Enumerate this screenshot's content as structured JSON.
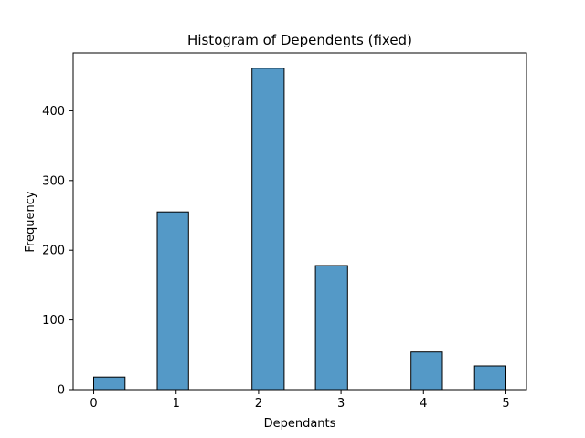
{
  "chart_data": {
    "type": "bar",
    "title": "Histogram of Dependents (fixed)",
    "xlabel": "Dependants",
    "ylabel": "Frequency",
    "bins": [
      {
        "x_start": 0.0,
        "x_end": 0.38,
        "value": 18
      },
      {
        "x_start": 0.77,
        "x_end": 1.15,
        "value": 255
      },
      {
        "x_start": 1.92,
        "x_end": 2.31,
        "value": 461
      },
      {
        "x_start": 2.69,
        "x_end": 3.08,
        "value": 178
      },
      {
        "x_start": 3.85,
        "x_end": 4.23,
        "value": 54
      },
      {
        "x_start": 4.62,
        "x_end": 5.0,
        "value": 34
      }
    ],
    "xlim": [
      -0.25,
      5.25
    ],
    "ylim": [
      0,
      483
    ],
    "x_ticks": [
      "0",
      "1",
      "2",
      "3",
      "4",
      "5"
    ],
    "x_tick_values": [
      0,
      1,
      2,
      3,
      4,
      5
    ],
    "y_ticks": [
      "0",
      "100",
      "200",
      "300",
      "400"
    ],
    "y_tick_values": [
      0,
      100,
      200,
      300,
      400
    ],
    "grid": false,
    "colors": {
      "bar_fill": "#5499c7",
      "bar_edge": "#000000"
    }
  }
}
